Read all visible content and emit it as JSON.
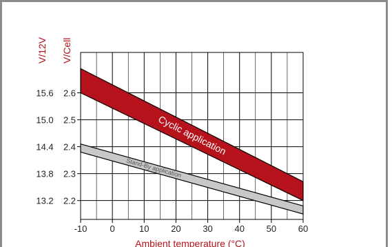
{
  "chart_data": {
    "type": "area",
    "xlabel": "Ambient temperature (°C)",
    "ylabel_volt12": "V/12V",
    "ylabel_cell": "V/Cell",
    "xlim": [
      -10,
      60
    ],
    "ylim_cell": [
      2.13,
      2.75
    ],
    "x_ticks": [
      -10,
      0,
      10,
      20,
      30,
      40,
      50,
      60
    ],
    "y_ticks_cell": [
      "2.6",
      "2.5",
      "2.4",
      "2.3",
      "2.2"
    ],
    "y_ticks_cell_values": [
      2.6,
      2.5,
      2.4,
      2.3,
      2.2
    ],
    "y_ticks_volt12": [
      "15.6",
      "15.0",
      "14.4",
      "13.8",
      "13.2"
    ],
    "series": [
      {
        "name": "Cyclic application",
        "x": [
          -10,
          60
        ],
        "upper": [
          2.69,
          2.27
        ],
        "lower": [
          2.6,
          2.2
        ],
        "color": "#b5121b"
      },
      {
        "name": "Stand-By application",
        "x": [
          -10,
          60
        ],
        "upper": [
          2.41,
          2.18
        ],
        "lower": [
          2.38,
          2.15
        ],
        "color": "#c8c8c8"
      }
    ],
    "grid": true,
    "accent_color": "#b5121b"
  }
}
